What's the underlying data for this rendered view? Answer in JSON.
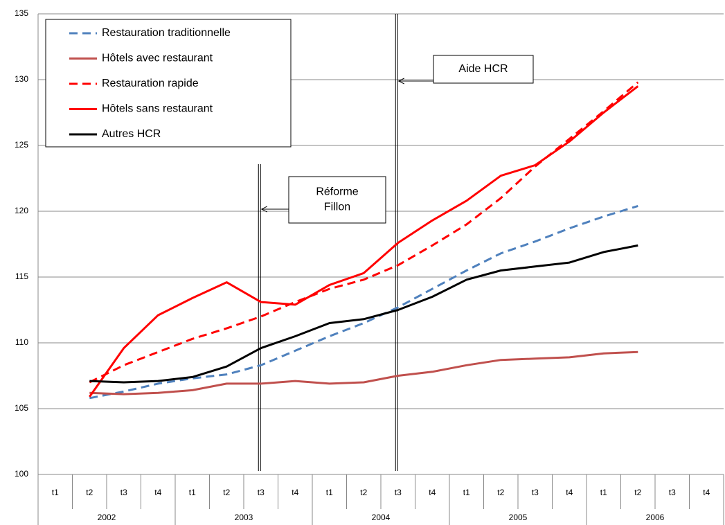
{
  "chart_data": {
    "type": "line",
    "categories": [
      "t1",
      "t2",
      "t3",
      "t4",
      "t1",
      "t2",
      "t3",
      "t4",
      "t1",
      "t2",
      "t3",
      "t4",
      "t1",
      "t2",
      "t3",
      "t4",
      "t1",
      "t2",
      "t3",
      "t4"
    ],
    "groups": [
      "2002",
      "2003",
      "2004",
      "2005",
      "2006"
    ],
    "ylim": [
      100,
      135
    ],
    "yticks": [
      100,
      105,
      110,
      115,
      120,
      125,
      130,
      135
    ],
    "grid": true,
    "series": [
      {
        "name": "Restauration traditionnelle",
        "color": "#4f81bd",
        "dashed": true,
        "values": [
          null,
          105.8,
          106.3,
          106.9,
          107.3,
          107.6,
          108.3,
          109.4,
          110.5,
          111.5,
          112.7,
          114.1,
          115.5,
          116.8,
          117.7,
          118.7,
          119.6,
          120.4,
          null,
          null
        ]
      },
      {
        "name": "Hôtels avec restaurant",
        "color": "#c0504d",
        "dashed": false,
        "values": [
          null,
          106.2,
          106.1,
          106.2,
          106.4,
          106.9,
          106.9,
          107.1,
          106.9,
          107.0,
          107.5,
          107.8,
          108.3,
          108.7,
          108.8,
          108.9,
          109.2,
          109.3,
          null,
          null
        ]
      },
      {
        "name": "Restauration rapide",
        "color": "#ff0000",
        "dashed": true,
        "values": [
          null,
          107.0,
          108.3,
          109.3,
          110.3,
          111.1,
          112.0,
          113.1,
          114.1,
          114.8,
          115.9,
          117.4,
          119.0,
          121.0,
          123.4,
          125.5,
          127.6,
          129.8,
          null,
          null
        ]
      },
      {
        "name": "Hôtels sans restaurant",
        "color": "#ff0000",
        "dashed": false,
        "values": [
          null,
          105.9,
          109.6,
          112.1,
          113.4,
          114.6,
          113.1,
          112.9,
          114.4,
          115.3,
          117.6,
          119.3,
          120.8,
          122.7,
          123.5,
          125.3,
          127.5,
          129.5,
          null,
          null
        ]
      },
      {
        "name": "Autres HCR",
        "color": "#000000",
        "dashed": false,
        "values": [
          null,
          107.1,
          107.0,
          107.1,
          107.4,
          108.2,
          109.6,
          110.5,
          111.5,
          111.8,
          112.5,
          113.5,
          114.8,
          115.5,
          115.8,
          116.1,
          116.9,
          117.4,
          null,
          null
        ]
      }
    ],
    "annotations": [
      {
        "lines": [
          "Réforme",
          "Fillon"
        ]
      },
      {
        "lines": [
          "Aide HCR"
        ]
      }
    ]
  }
}
